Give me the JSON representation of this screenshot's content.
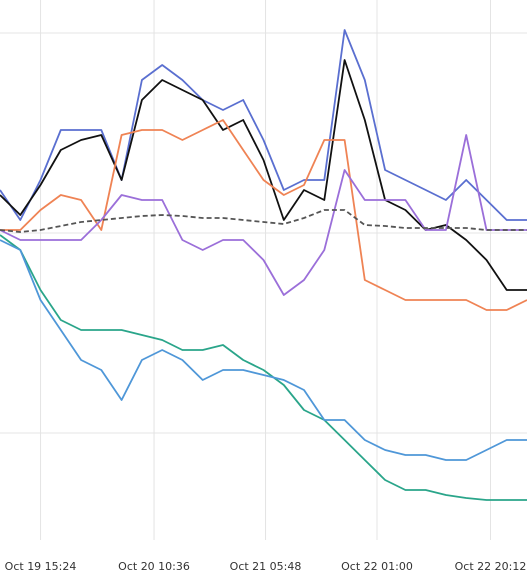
{
  "chart_data": {
    "type": "line",
    "x": [
      0,
      1,
      2,
      3,
      4,
      5,
      6,
      7,
      8,
      9,
      10,
      11,
      12,
      13,
      14,
      15,
      16,
      17,
      18,
      19,
      20,
      21,
      22,
      23,
      24,
      25,
      26
    ],
    "xlim": [
      0,
      26
    ],
    "xticks": [
      {
        "value": 2,
        "label": "Oct 19 15:24"
      },
      {
        "value": 7.6,
        "label": "Oct 20 10:36"
      },
      {
        "value": 13.1,
        "label": "Oct 21 05:48"
      },
      {
        "value": 18.6,
        "label": "Oct 22 01:00"
      },
      {
        "value": 24.2,
        "label": "Oct 22 20:12"
      }
    ],
    "ylim": [
      0,
      540
    ],
    "yticks": [
      107,
      307,
      507
    ],
    "grid": true,
    "series": [
      {
        "color": "#5a6fd0",
        "values": [
          350,
          320,
          360,
          410,
          410,
          410,
          360,
          460,
          475,
          460,
          440,
          430,
          440,
          400,
          350,
          360,
          360,
          510,
          460,
          370,
          360,
          350,
          340,
          360,
          340,
          320,
          320
        ]
      },
      {
        "color": "#111111",
        "values": [
          345,
          325,
          355,
          390,
          400,
          405,
          360,
          440,
          460,
          450,
          440,
          410,
          420,
          380,
          320,
          350,
          340,
          480,
          420,
          340,
          330,
          310,
          315,
          300,
          280,
          250,
          250
        ]
      },
      {
        "color": "#ef8354",
        "values": [
          310,
          310,
          330,
          345,
          340,
          310,
          405,
          410,
          410,
          400,
          410,
          420,
          390,
          360,
          345,
          355,
          400,
          400,
          260,
          250,
          240,
          240,
          240,
          240,
          230,
          230,
          240
        ]
      },
      {
        "color": "#9b6fd9",
        "values": [
          310,
          300,
          300,
          300,
          300,
          320,
          345,
          340,
          340,
          300,
          290,
          300,
          300,
          280,
          245,
          260,
          290,
          370,
          340,
          340,
          340,
          310,
          310,
          405,
          310,
          310,
          310
        ]
      },
      {
        "color": "#555555",
        "dashed": true,
        "values": [
          310,
          308,
          310,
          314,
          318,
          320,
          322,
          324,
          325,
          324,
          322,
          322,
          320,
          318,
          316,
          322,
          330,
          330,
          315,
          314,
          312,
          312,
          312,
          312,
          310,
          310,
          310
        ]
      },
      {
        "color": "#2aa58a",
        "values": [
          305,
          290,
          250,
          220,
          210,
          210,
          210,
          205,
          200,
          190,
          190,
          195,
          180,
          170,
          155,
          130,
          120,
          100,
          80,
          60,
          50,
          50,
          45,
          42,
          40,
          40,
          40
        ]
      },
      {
        "color": "#4f97d8",
        "values": [
          300,
          290,
          240,
          210,
          180,
          170,
          140,
          180,
          190,
          180,
          160,
          170,
          170,
          165,
          160,
          150,
          120,
          120,
          100,
          90,
          85,
          85,
          80,
          80,
          90,
          100,
          100
        ]
      }
    ]
  }
}
